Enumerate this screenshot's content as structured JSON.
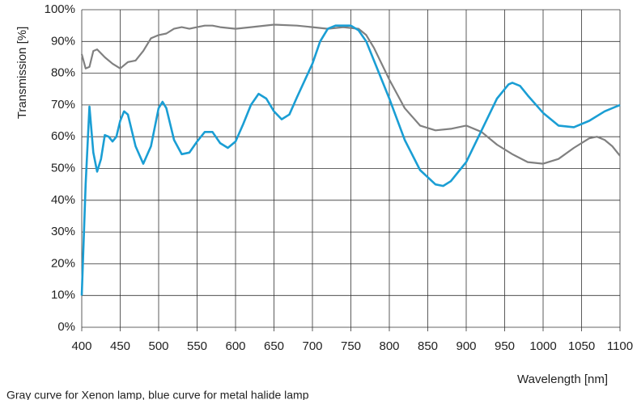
{
  "chart_data": {
    "type": "line",
    "xlabel": "Wavelength [nm]",
    "ylabel": "Transmission [%]",
    "caption": "Gray curve for Xenon lamp, blue curve for metal halide lamp",
    "xlim": [
      400,
      1100
    ],
    "ylim": [
      0,
      100
    ],
    "xticks": [
      400,
      450,
      500,
      550,
      600,
      650,
      700,
      750,
      800,
      850,
      900,
      950,
      1000,
      1050,
      1100
    ],
    "yticks": [
      {
        "value": 0,
        "label": "0%"
      },
      {
        "value": 10,
        "label": "10%"
      },
      {
        "value": 20,
        "label": "20%"
      },
      {
        "value": 30,
        "label": "30%"
      },
      {
        "value": 40,
        "label": "40%"
      },
      {
        "value": 50,
        "label": "50%"
      },
      {
        "value": 60,
        "label": "60%"
      },
      {
        "value": 70,
        "label": "70%"
      },
      {
        "value": 80,
        "label": "80%"
      },
      {
        "value": 90,
        "label": "90%"
      },
      {
        "value": 100,
        "label": "100%"
      }
    ],
    "grid": true,
    "series": [
      {
        "color": "#808080",
        "x": [
          400,
          405,
          410,
          415,
          420,
          430,
          440,
          450,
          460,
          470,
          480,
          490,
          500,
          510,
          520,
          530,
          540,
          550,
          560,
          570,
          580,
          600,
          620,
          650,
          680,
          700,
          720,
          740,
          760,
          770,
          780,
          800,
          820,
          840,
          860,
          880,
          900,
          920,
          940,
          960,
          980,
          1000,
          1020,
          1040,
          1060,
          1070,
          1080,
          1090,
          1100
        ],
        "values": [
          86,
          81.5,
          82,
          87,
          87.5,
          85,
          83,
          81.5,
          83.5,
          84,
          87,
          91,
          92,
          92.5,
          94,
          94.5,
          94,
          94.5,
          95,
          95,
          94.5,
          94,
          94.5,
          95.3,
          95,
          94.5,
          94,
          94.5,
          94,
          92,
          88,
          78,
          69,
          63.5,
          62,
          62.5,
          63.5,
          61.5,
          57.5,
          54.5,
          52,
          51.5,
          53,
          56.5,
          59.5,
          60,
          59,
          57,
          54
        ]
      },
      {
        "color": "#1a9ed4",
        "x": [
          400,
          405,
          410,
          415,
          420,
          425,
          430,
          435,
          440,
          445,
          450,
          455,
          460,
          470,
          480,
          490,
          500,
          505,
          510,
          520,
          530,
          540,
          550,
          560,
          570,
          580,
          590,
          600,
          610,
          620,
          630,
          640,
          650,
          660,
          670,
          680,
          700,
          710,
          720,
          730,
          750,
          760,
          770,
          780,
          800,
          820,
          840,
          860,
          870,
          880,
          900,
          920,
          940,
          955,
          960,
          970,
          980,
          1000,
          1020,
          1040,
          1060,
          1080,
          1100
        ],
        "values": [
          10,
          45,
          69.5,
          55,
          49,
          53,
          60.5,
          60,
          58.5,
          60,
          65,
          68,
          67,
          57,
          51.5,
          57,
          69,
          71,
          69,
          59,
          54.5,
          55,
          58.5,
          61.5,
          61.5,
          58,
          56.5,
          58.5,
          64,
          70,
          73.5,
          72,
          68,
          65.5,
          67,
          72.5,
          83,
          90,
          94,
          95,
          95,
          93.5,
          90,
          84,
          72,
          59,
          49.5,
          45,
          44.5,
          46,
          52,
          62,
          72,
          76.5,
          77,
          76,
          73,
          67.5,
          63.5,
          63,
          65,
          68,
          70
        ]
      }
    ]
  }
}
